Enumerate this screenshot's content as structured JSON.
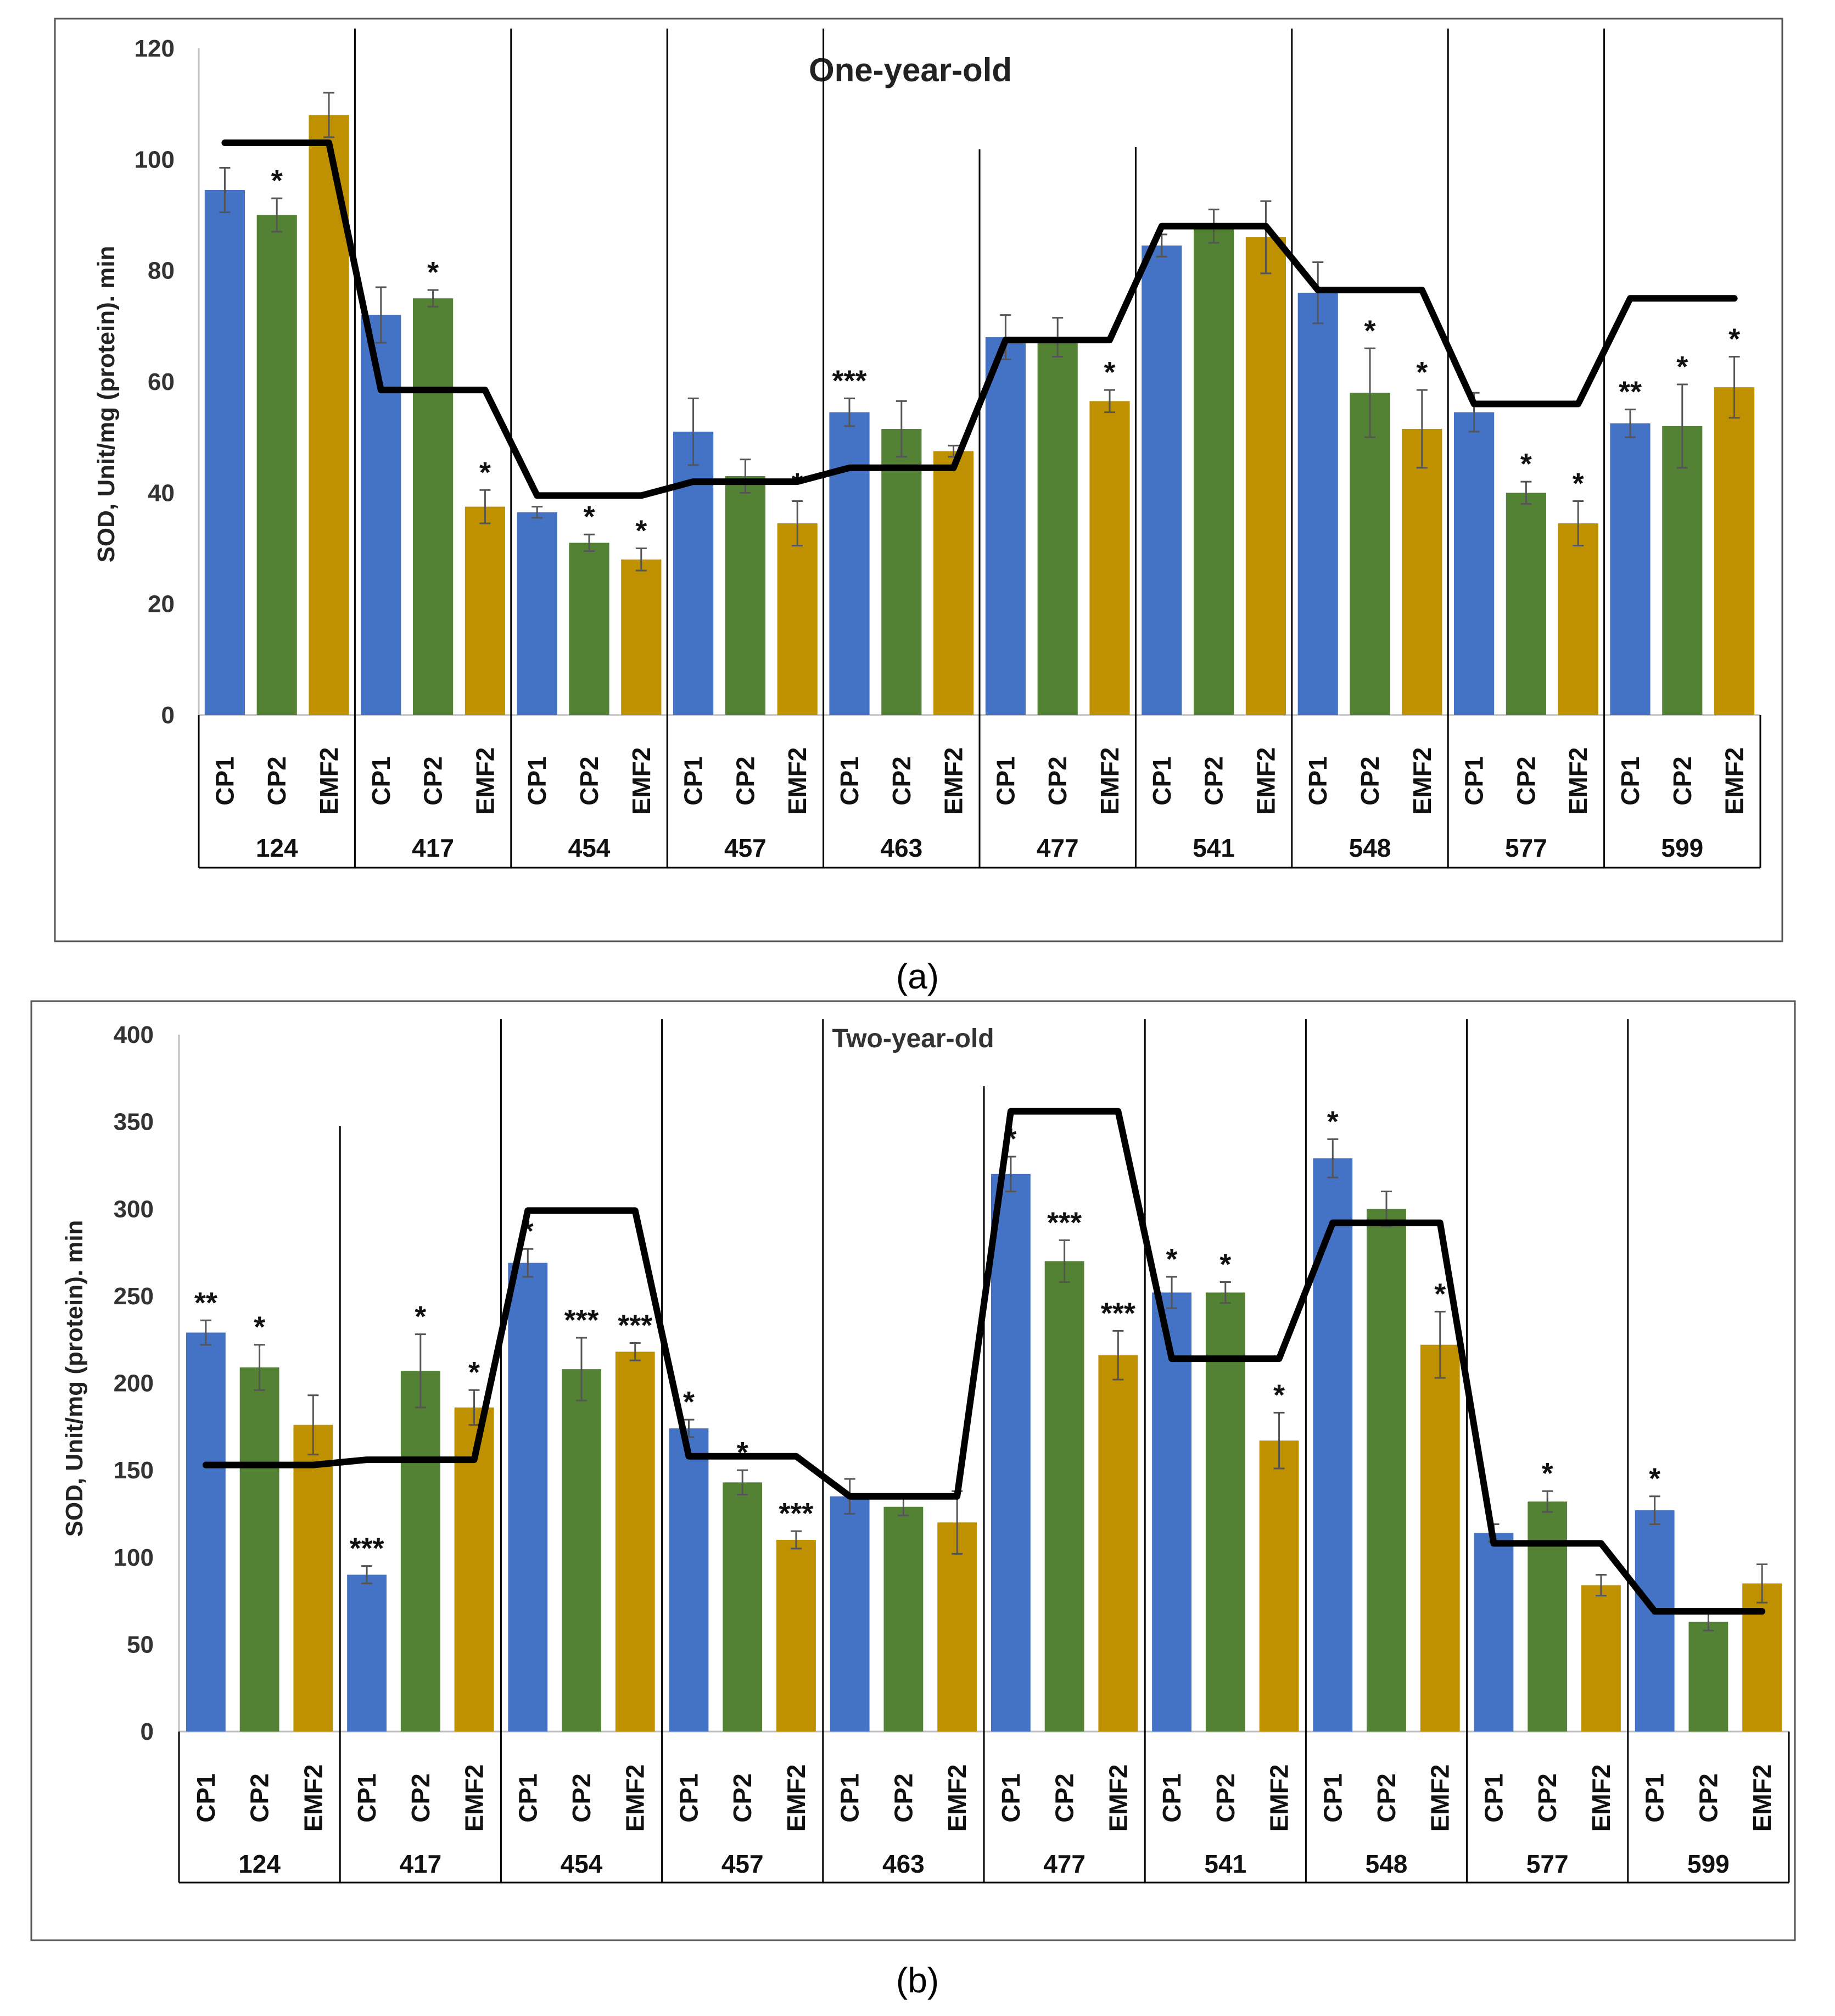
{
  "chart_data": [
    {
      "type": "bar",
      "panel_label": "(a)",
      "title": "One-year-old",
      "ylabel": "SOD, Unit/mg (protein). min",
      "ylim": [
        0,
        120
      ],
      "yticks": [
        0,
        20,
        40,
        60,
        80,
        100,
        120
      ],
      "groups": [
        "124",
        "417",
        "454",
        "457",
        "463",
        "477",
        "541",
        "548",
        "577",
        "599"
      ],
      "series_names": [
        "CP1",
        "CP2",
        "EMF2"
      ],
      "colors": {
        "CP1": "#4472c4",
        "CP2": "#548235",
        "EMF2": "#bf9000"
      },
      "values": [
        [
          94.5,
          90,
          108
        ],
        [
          72,
          75,
          37.5
        ],
        [
          36.5,
          31,
          28
        ],
        [
          51,
          43,
          34.5
        ],
        [
          54.5,
          51.5,
          47.5
        ],
        [
          68,
          68,
          56.5
        ],
        [
          84.5,
          88,
          86
        ],
        [
          76,
          58,
          51.5
        ],
        [
          54.5,
          40,
          34.5
        ],
        [
          52.5,
          52,
          59
        ]
      ],
      "errors": [
        [
          4,
          3,
          4
        ],
        [
          5,
          1.5,
          3
        ],
        [
          1,
          1.5,
          2
        ],
        [
          6,
          3,
          4
        ],
        [
          2.5,
          5,
          1
        ],
        [
          4,
          3.5,
          2
        ],
        [
          2,
          3,
          6.5
        ],
        [
          5.5,
          8,
          7
        ],
        [
          3.5,
          2,
          4
        ],
        [
          2.5,
          7.5,
          5.5
        ]
      ],
      "significance": [
        [
          "",
          "*",
          ""
        ],
        [
          "",
          "*",
          "*"
        ],
        [
          "",
          "*",
          "*"
        ],
        [
          "",
          "",
          "*"
        ],
        [
          "***",
          "",
          ""
        ],
        [
          "",
          "",
          "*"
        ],
        [
          "",
          "",
          ""
        ],
        [
          "",
          "*",
          "*"
        ],
        [
          "",
          "*",
          "*"
        ],
        [
          "**",
          "*",
          "*"
        ]
      ],
      "reference_line": [
        103,
        58.5,
        39.5,
        42,
        44.5,
        67.5,
        88,
        76.5,
        56,
        75
      ]
    },
    {
      "type": "bar",
      "panel_label": "(b)",
      "title": "Two-year-old",
      "ylabel": "SOD, Unit/mg (protein). min",
      "ylim": [
        0,
        400
      ],
      "yticks": [
        0,
        50,
        100,
        150,
        200,
        250,
        300,
        350,
        400
      ],
      "groups": [
        "124",
        "417",
        "454",
        "457",
        "463",
        "477",
        "541",
        "548",
        "577",
        "599"
      ],
      "series_names": [
        "CP1",
        "CP2",
        "EMF2"
      ],
      "colors": {
        "CP1": "#4472c4",
        "CP2": "#548235",
        "EMF2": "#bf9000"
      },
      "values": [
        [
          229,
          209,
          176
        ],
        [
          90,
          207,
          186
        ],
        [
          269,
          208,
          218
        ],
        [
          174,
          143,
          110
        ],
        [
          135,
          129,
          120
        ],
        [
          320,
          270,
          216
        ],
        [
          252,
          252,
          167
        ],
        [
          329,
          300,
          222
        ],
        [
          114,
          132,
          84
        ],
        [
          127,
          63,
          85
        ]
      ],
      "errors": [
        [
          7,
          13,
          17
        ],
        [
          5,
          21,
          10
        ],
        [
          8,
          18,
          5
        ],
        [
          5,
          7,
          5
        ],
        [
          10,
          5,
          18
        ],
        [
          10,
          12,
          14
        ],
        [
          9,
          6,
          16
        ],
        [
          11,
          10,
          19
        ],
        [
          5,
          6,
          6
        ],
        [
          8,
          5,
          11
        ]
      ],
      "significance": [
        [
          "**",
          "*",
          ""
        ],
        [
          "***",
          "*",
          "*"
        ],
        [
          "*",
          "***",
          "***"
        ],
        [
          "*",
          "*",
          "***"
        ],
        [
          "",
          "",
          ""
        ],
        [
          "*",
          "***",
          "***"
        ],
        [
          "*",
          "*",
          "*"
        ],
        [
          "*",
          "",
          "*"
        ],
        [
          "",
          "*",
          ""
        ],
        [
          "*",
          "",
          ""
        ]
      ],
      "reference_line": [
        153,
        156,
        299,
        158,
        135,
        356,
        214,
        292,
        108,
        69
      ]
    }
  ]
}
